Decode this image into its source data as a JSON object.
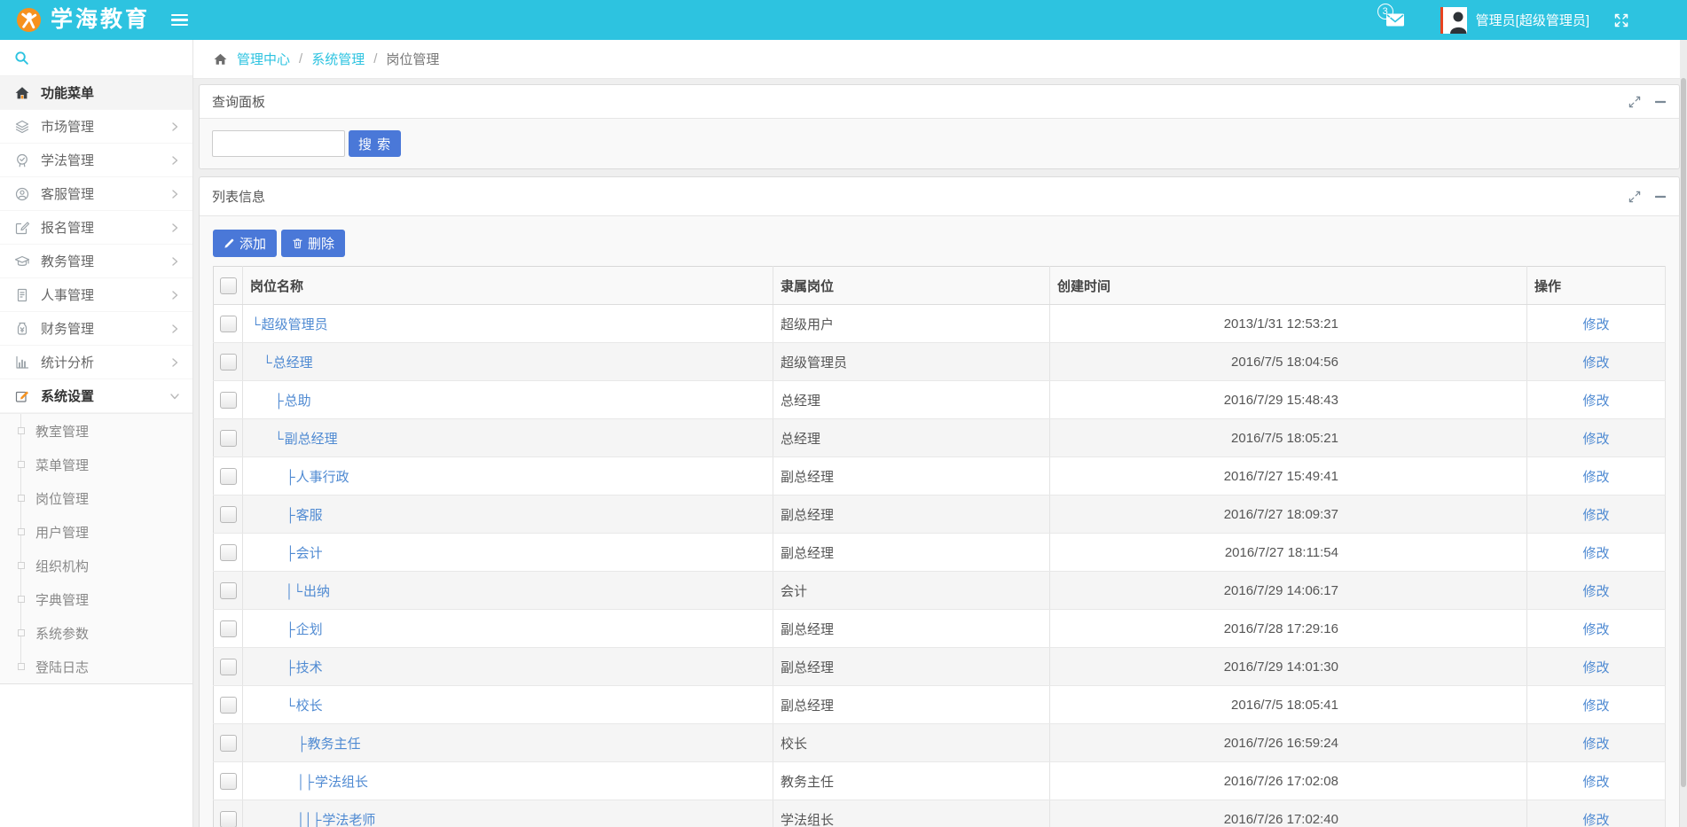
{
  "topbar": {
    "brand": "学海教育",
    "notification_count": "3",
    "user": "管理员[超级管理员]"
  },
  "colors": {
    "topbar_cyan": "#2dc3e0",
    "brand_orange": "#f6921e",
    "button_blue": "#4a78d8",
    "link_blue": "#4f8ad2"
  },
  "sidebar": {
    "items": [
      {
        "label": "功能菜单",
        "icon": "home",
        "active": true,
        "chevron": "none"
      },
      {
        "label": "市场管理",
        "icon": "layers",
        "chevron": "right"
      },
      {
        "label": "学法管理",
        "icon": "badge",
        "chevron": "right"
      },
      {
        "label": "客服管理",
        "icon": "headset",
        "chevron": "right"
      },
      {
        "label": "报名管理",
        "icon": "edit",
        "chevron": "right"
      },
      {
        "label": "教务管理",
        "icon": "cap",
        "chevron": "right"
      },
      {
        "label": "人事管理",
        "icon": "doc",
        "chevron": "right"
      },
      {
        "label": "财务管理",
        "icon": "money",
        "chevron": "right"
      },
      {
        "label": "统计分析",
        "icon": "chart",
        "chevron": "right"
      },
      {
        "label": "系统设置",
        "icon": "pen",
        "open": true,
        "chevron": "down"
      }
    ],
    "submenu": [
      {
        "label": "教室管理"
      },
      {
        "label": "菜单管理"
      },
      {
        "label": "岗位管理"
      },
      {
        "label": "用户管理"
      },
      {
        "label": "组织机构"
      },
      {
        "label": "字典管理"
      },
      {
        "label": "系统参数"
      },
      {
        "label": "登陆日志"
      }
    ]
  },
  "breadcrumb": {
    "separator": "/",
    "items": [
      "管理中心",
      "系统管理",
      "岗位管理"
    ]
  },
  "panels": {
    "query": {
      "title": "查询面板",
      "input_value": "",
      "search_button": "搜 索"
    },
    "list": {
      "title": "列表信息",
      "add_button": "添加",
      "delete_button": "删除"
    }
  },
  "table": {
    "columns": [
      "岗位名称",
      "隶属岗位",
      "创建时间",
      "操作"
    ],
    "action_label": "修改",
    "rows": [
      {
        "prefix": "└",
        "indent": 0,
        "name": "超级管理员",
        "parent": "超级用户",
        "created": "2013/1/31 12:53:21"
      },
      {
        "prefix": "└",
        "indent": 1,
        "name": "总经理",
        "parent": "超级管理员",
        "created": "2016/7/5 18:04:56"
      },
      {
        "prefix": "├",
        "indent": 2,
        "name": "总助",
        "parent": "总经理",
        "created": "2016/7/29 15:48:43"
      },
      {
        "prefix": "└",
        "indent": 2,
        "name": "副总经理",
        "parent": "总经理",
        "created": "2016/7/5 18:05:21"
      },
      {
        "prefix": "├",
        "indent": 3,
        "name": "人事行政",
        "parent": "副总经理",
        "created": "2016/7/27 15:49:41"
      },
      {
        "prefix": "├",
        "indent": 3,
        "name": "客服",
        "parent": "副总经理",
        "created": "2016/7/27 18:09:37"
      },
      {
        "prefix": "├",
        "indent": 3,
        "name": "会计",
        "parent": "副总经理",
        "created": "2016/7/27 18:11:54"
      },
      {
        "prefix": "│└",
        "indent": 3,
        "name": "出纳",
        "parent": "会计",
        "created": "2016/7/29 14:06:17"
      },
      {
        "prefix": "├",
        "indent": 3,
        "name": "企划",
        "parent": "副总经理",
        "created": "2016/7/28 17:29:16"
      },
      {
        "prefix": "├",
        "indent": 3,
        "name": "技术",
        "parent": "副总经理",
        "created": "2016/7/29 14:01:30"
      },
      {
        "prefix": "└",
        "indent": 3,
        "name": "校长",
        "parent": "副总经理",
        "created": "2016/7/5 18:05:41"
      },
      {
        "prefix": "├",
        "indent": 4,
        "name": "教务主任",
        "parent": "校长",
        "created": "2016/7/26 16:59:24"
      },
      {
        "prefix": "│├",
        "indent": 4,
        "name": "学法组长",
        "parent": "教务主任",
        "created": "2016/7/26 17:02:08"
      },
      {
        "prefix": "││├",
        "indent": 4,
        "name": "学法老师",
        "parent": "学法组长",
        "created": "2016/7/26 17:02:40"
      }
    ]
  }
}
